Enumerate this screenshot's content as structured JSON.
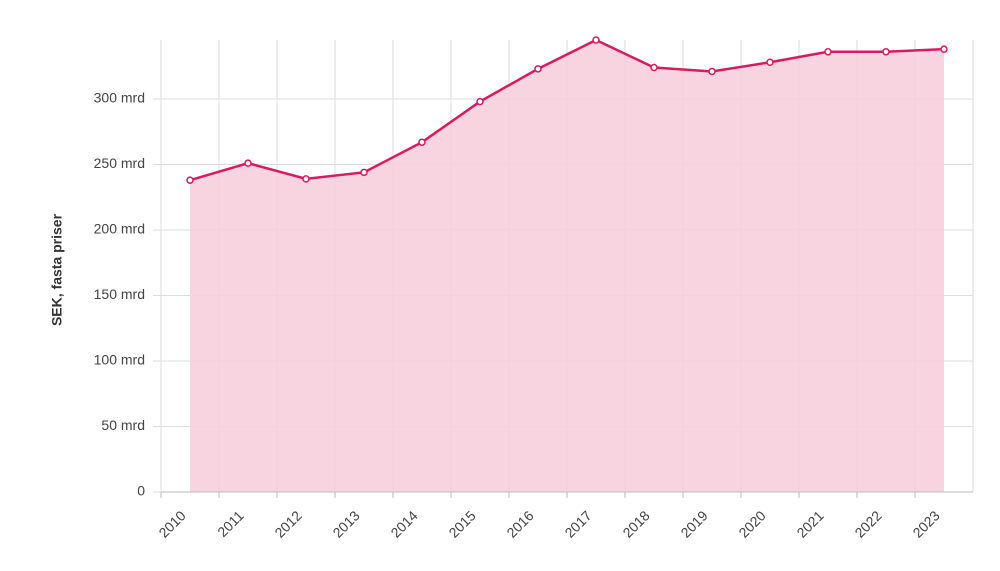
{
  "chart_data": {
    "type": "area",
    "y_label": "SEK, fasta priser",
    "categories": [
      "2010",
      "2011",
      "2012",
      "2013",
      "2014",
      "2015",
      "2016",
      "2017",
      "2018",
      "2019",
      "2020",
      "2021",
      "2022",
      "2023"
    ],
    "values": [
      238,
      251,
      239,
      244,
      267,
      298,
      323,
      345,
      324,
      321,
      328,
      336,
      336,
      338
    ],
    "color": "#d81b60",
    "fill": "#f6cfdc",
    "ylim": [
      0,
      345
    ],
    "yticks": [
      0,
      {
        "value": 50,
        "label": "50 mrd"
      },
      {
        "value": 100,
        "label": "100 mrd"
      },
      {
        "value": 150,
        "label": "150 mrd"
      },
      {
        "value": 200,
        "label": "200 mrd"
      },
      {
        "value": 250,
        "label": "250 mrd"
      },
      {
        "value": 300,
        "label": "300 mrd"
      }
    ],
    "grid": true
  }
}
